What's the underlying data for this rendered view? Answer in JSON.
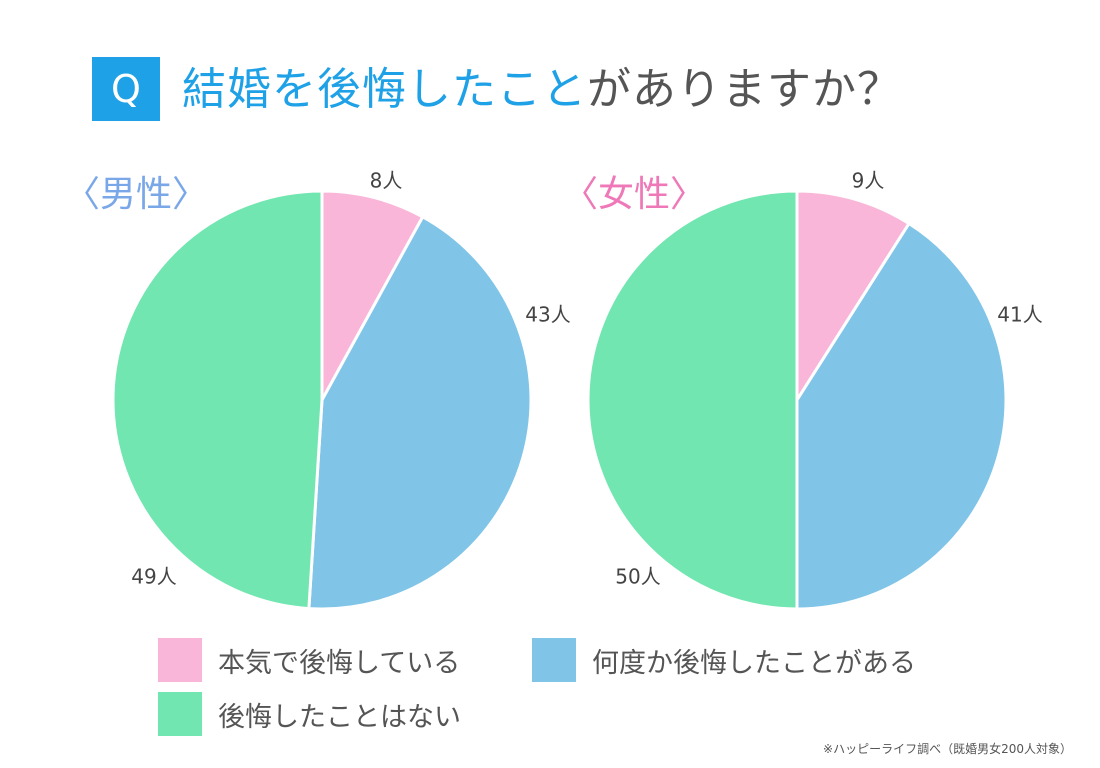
{
  "header": {
    "badge": "Q",
    "title_highlight": "結婚を後悔したこと",
    "title_rest": "がありますか？"
  },
  "colors": {
    "accent": "#1ea1e6",
    "male_label": "#7aa7e8",
    "female_label": "#ef78b8",
    "pink": "#f9b6d8",
    "blue": "#80c4e8",
    "green": "#72e6b0"
  },
  "chart_data": [
    {
      "type": "pie",
      "title": "〈男性〉",
      "categories": [
        "本気で後悔している",
        "何度か後悔したことがある",
        "後悔したことはない"
      ],
      "values": [
        8,
        43,
        49
      ],
      "data_labels": [
        "8人",
        "43人",
        "49人"
      ]
    },
    {
      "type": "pie",
      "title": "〈女性〉",
      "categories": [
        "本気で後悔している",
        "何度か後悔したことがある",
        "後悔したことはない"
      ],
      "values": [
        9,
        41,
        50
      ],
      "data_labels": [
        "9人",
        "41人",
        "50人"
      ]
    }
  ],
  "legend": [
    {
      "label": "本気で後悔している",
      "color": "#f9b6d8"
    },
    {
      "label": "何度か後悔したことがある",
      "color": "#80c4e8"
    },
    {
      "label": "後悔したことはない",
      "color": "#72e6b0"
    }
  ],
  "footnote": "※ハッピーライフ調べ（既婚男女200人対象）"
}
